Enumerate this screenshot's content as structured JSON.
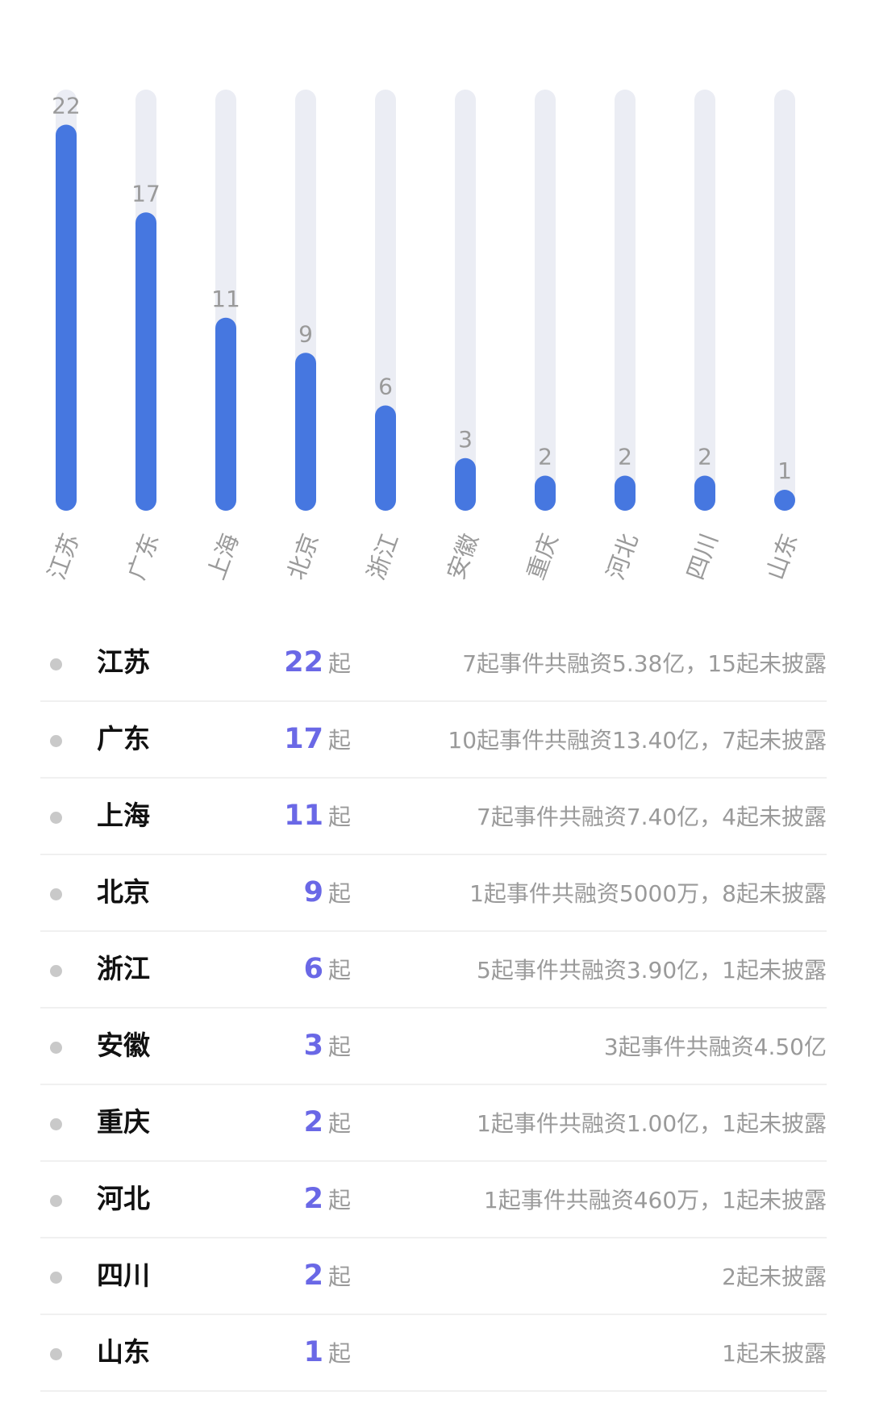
{
  "chart_data": {
    "type": "bar",
    "categories": [
      "江苏",
      "广东",
      "上海",
      "北京",
      "浙江",
      "安徽",
      "重庆",
      "河北",
      "四川",
      "山东"
    ],
    "values": [
      22,
      17,
      11,
      9,
      6,
      3,
      2,
      2,
      2,
      1
    ],
    "ylim": [
      0,
      24
    ],
    "data_labels": "above-bar",
    "grid": false,
    "colors": {
      "bar": "#4677e0",
      "track": "#ebedf4"
    }
  },
  "list": {
    "unit": "起",
    "rows": [
      {
        "region": "江苏",
        "count": "22",
        "detail": "7起事件共融资5.38亿，15起未披露"
      },
      {
        "region": "广东",
        "count": "17",
        "detail": "10起事件共融资13.40亿，7起未披露"
      },
      {
        "region": "上海",
        "count": "11",
        "detail": "7起事件共融资7.40亿，4起未披露"
      },
      {
        "region": "北京",
        "count": "9",
        "detail": "1起事件共融资5000万，8起未披露"
      },
      {
        "region": "浙江",
        "count": "6",
        "detail": "5起事件共融资3.90亿，1起未披露"
      },
      {
        "region": "安徽",
        "count": "3",
        "detail": "3起事件共融资4.50亿"
      },
      {
        "region": "重庆",
        "count": "2",
        "detail": "1起事件共融资1.00亿，1起未披露"
      },
      {
        "region": "河北",
        "count": "2",
        "detail": "1起事件共融资460万，1起未披露"
      },
      {
        "region": "四川",
        "count": "2",
        "detail": "2起未披露"
      },
      {
        "region": "山东",
        "count": "1",
        "detail": "1起未披露"
      }
    ]
  }
}
